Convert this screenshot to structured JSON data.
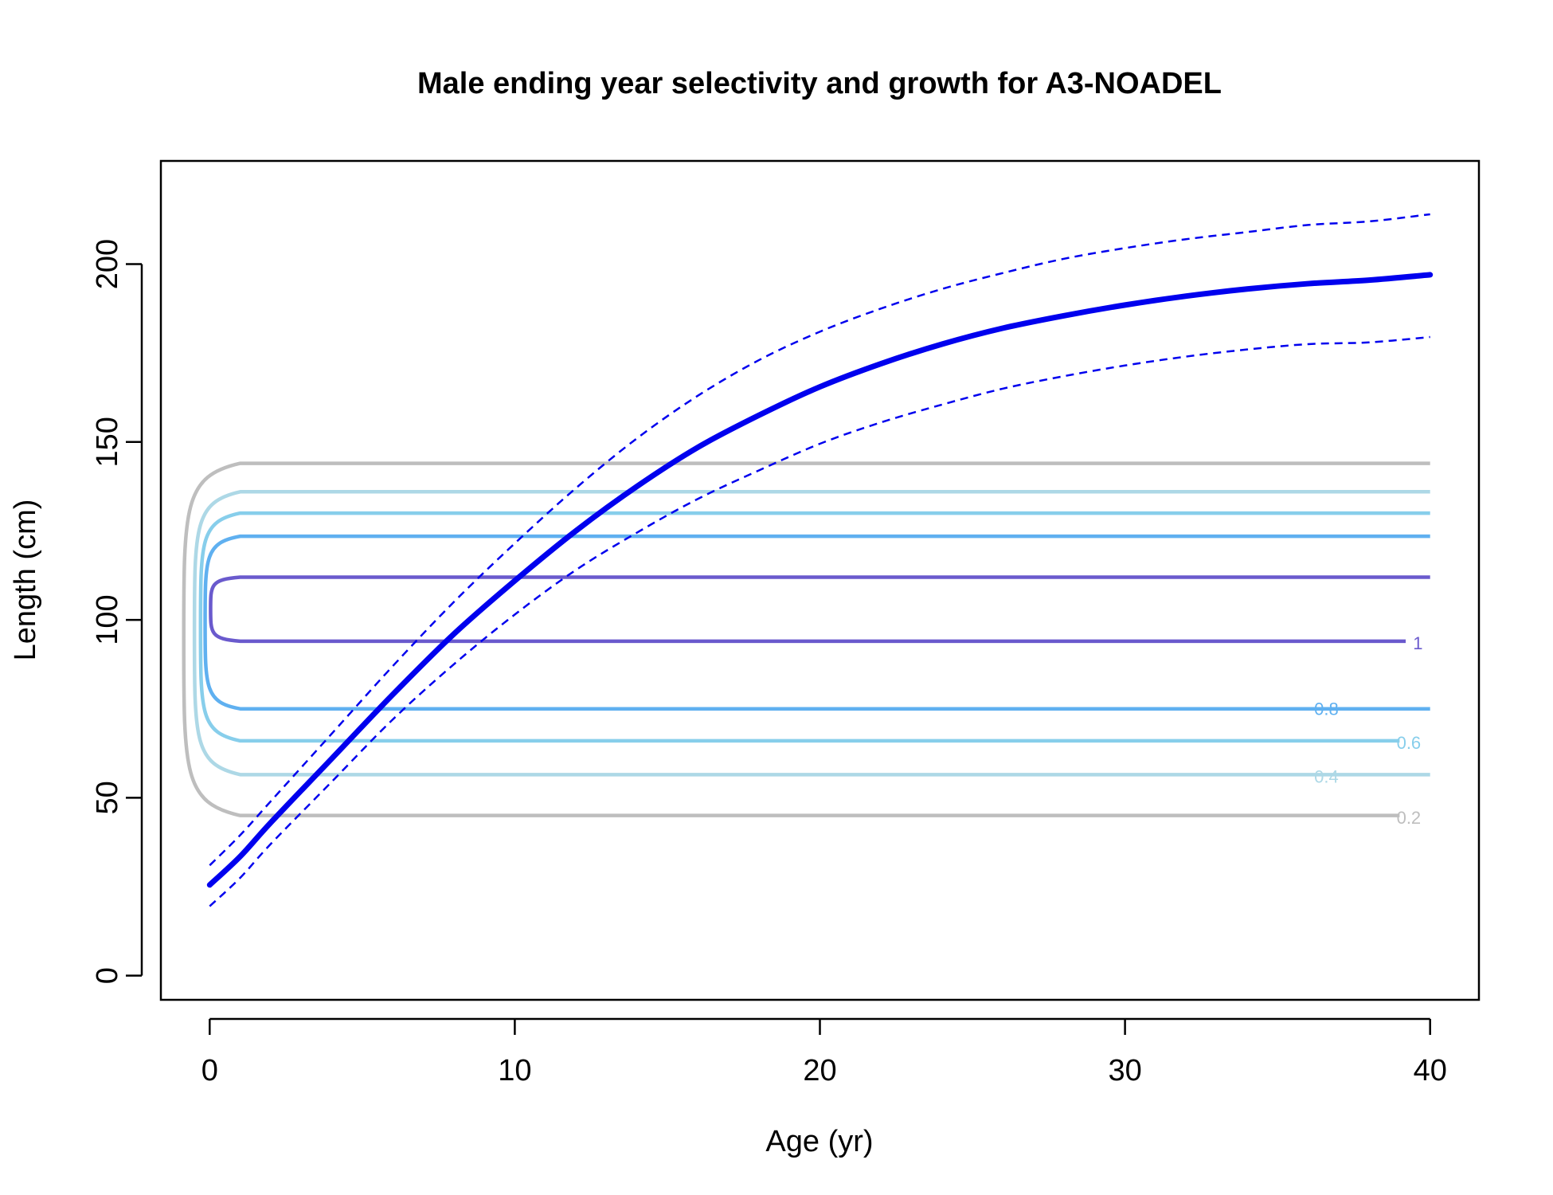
{
  "chart_data": {
    "type": "line",
    "title": "Male ending year selectivity and growth for A3-NOADEL",
    "xlabel": "Age (yr)",
    "ylabel": "Length (cm)",
    "xlim": [
      -1.6,
      41.6
    ],
    "ylim": [
      -6.8,
      229
    ],
    "xticks": [
      0,
      10,
      20,
      30,
      40
    ],
    "yticks": [
      0,
      50,
      100,
      150,
      200
    ],
    "x_tick_labels": [
      "0",
      "10",
      "20",
      "30",
      "40"
    ],
    "y_tick_labels": [
      "0",
      "50",
      "100",
      "150",
      "200"
    ],
    "grid": false,
    "legend": false,
    "colors": {
      "growth": "#0000ee",
      "contour_1": "#6a5acd",
      "contour_0_8": "#5fb0f0",
      "contour_0_6": "#87ceeb",
      "contour_0_4": "#add8e6",
      "contour_0_2": "#bebebe",
      "frame": "#000000"
    },
    "growth_curve": {
      "age": [
        0,
        1,
        2,
        4,
        6,
        8,
        10,
        12,
        14,
        16,
        18,
        20,
        22,
        24,
        26,
        28,
        30,
        32,
        34,
        36,
        38,
        40
      ],
      "mean": [
        25.5,
        33.5,
        43,
        61,
        79,
        96,
        111,
        125,
        137.5,
        148.5,
        157.5,
        165.5,
        172,
        177.5,
        182,
        185.5,
        188.5,
        191,
        193,
        194.5,
        195.5,
        197
      ],
      "upper": [
        31,
        39.5,
        49,
        68,
        87,
        105,
        121.5,
        137,
        151,
        163,
        173,
        181,
        187.5,
        193,
        197.5,
        201.5,
        204.5,
        207,
        209,
        211,
        212,
        214
      ],
      "lower": [
        19.5,
        27.5,
        37,
        54.5,
        72,
        87.5,
        101.5,
        114,
        124.5,
        134,
        142,
        149.5,
        155.5,
        160.5,
        165,
        168.5,
        171.5,
        174,
        176,
        177.5,
        178,
        179.5
      ]
    },
    "selectivity_contours": [
      {
        "level": 0.2,
        "label": "0.2",
        "color": "#bebebe",
        "lower": 45,
        "upper": 144,
        "lower_end": 39,
        "upper_end": 40
      },
      {
        "level": 0.4,
        "label": "0.4",
        "color": "#add8e6",
        "lower": 56.5,
        "upper": 136,
        "lower_end": 40,
        "upper_end": 40
      },
      {
        "level": 0.6,
        "label": "0.6",
        "color": "#87ceeb",
        "lower": 66,
        "upper": 130,
        "lower_end": 39,
        "upper_end": 40
      },
      {
        "level": 0.8,
        "label": "0.8",
        "color": "#5fb0f0",
        "lower": 75,
        "upper": 123.5,
        "lower_end": 40,
        "upper_end": 40
      },
      {
        "level": 1,
        "label": "1",
        "color": "#6a5acd",
        "lower": 94,
        "upper": 112,
        "lower_end": 39.2,
        "upper_end": 40
      }
    ],
    "contour_label_positions": [
      {
        "label": "1",
        "age": 39.6,
        "length": 93.5
      },
      {
        "label": "0.8",
        "age": 36.6,
        "length": 75
      },
      {
        "label": "0.6",
        "age": 39.3,
        "length": 65.5
      },
      {
        "label": "0.4",
        "age": 36.6,
        "length": 56
      },
      {
        "label": "0.2",
        "age": 39.3,
        "length": 44.5
      }
    ]
  }
}
